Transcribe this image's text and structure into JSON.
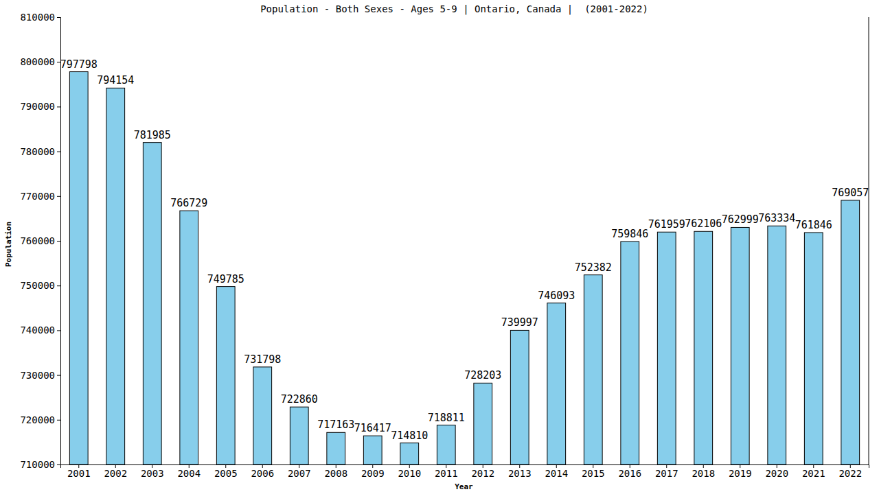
{
  "chart_data": {
    "type": "bar",
    "title": "Population - Both Sexes - Ages 5-9 | Ontario, Canada |  (2001-2022)",
    "x_label": "Year",
    "y_label": "Population",
    "categories": [
      "2001",
      "2002",
      "2003",
      "2004",
      "2005",
      "2006",
      "2007",
      "2008",
      "2009",
      "2010",
      "2011",
      "2012",
      "2013",
      "2014",
      "2015",
      "2016",
      "2017",
      "2018",
      "2019",
      "2020",
      "2021",
      "2022"
    ],
    "values": [
      797798,
      794154,
      781985,
      766729,
      749785,
      731798,
      722860,
      717163,
      716417,
      714810,
      718811,
      728203,
      739997,
      746093,
      752382,
      759846,
      761959,
      762106,
      762999,
      763334,
      761846,
      769057
    ],
    "color": "#87ceeb",
    "ylim": [
      710000,
      810000
    ],
    "yticks": [
      710000,
      720000,
      730000,
      740000,
      750000,
      760000,
      770000,
      780000,
      790000,
      800000,
      810000
    ],
    "grid": false,
    "data_labels": true
  }
}
